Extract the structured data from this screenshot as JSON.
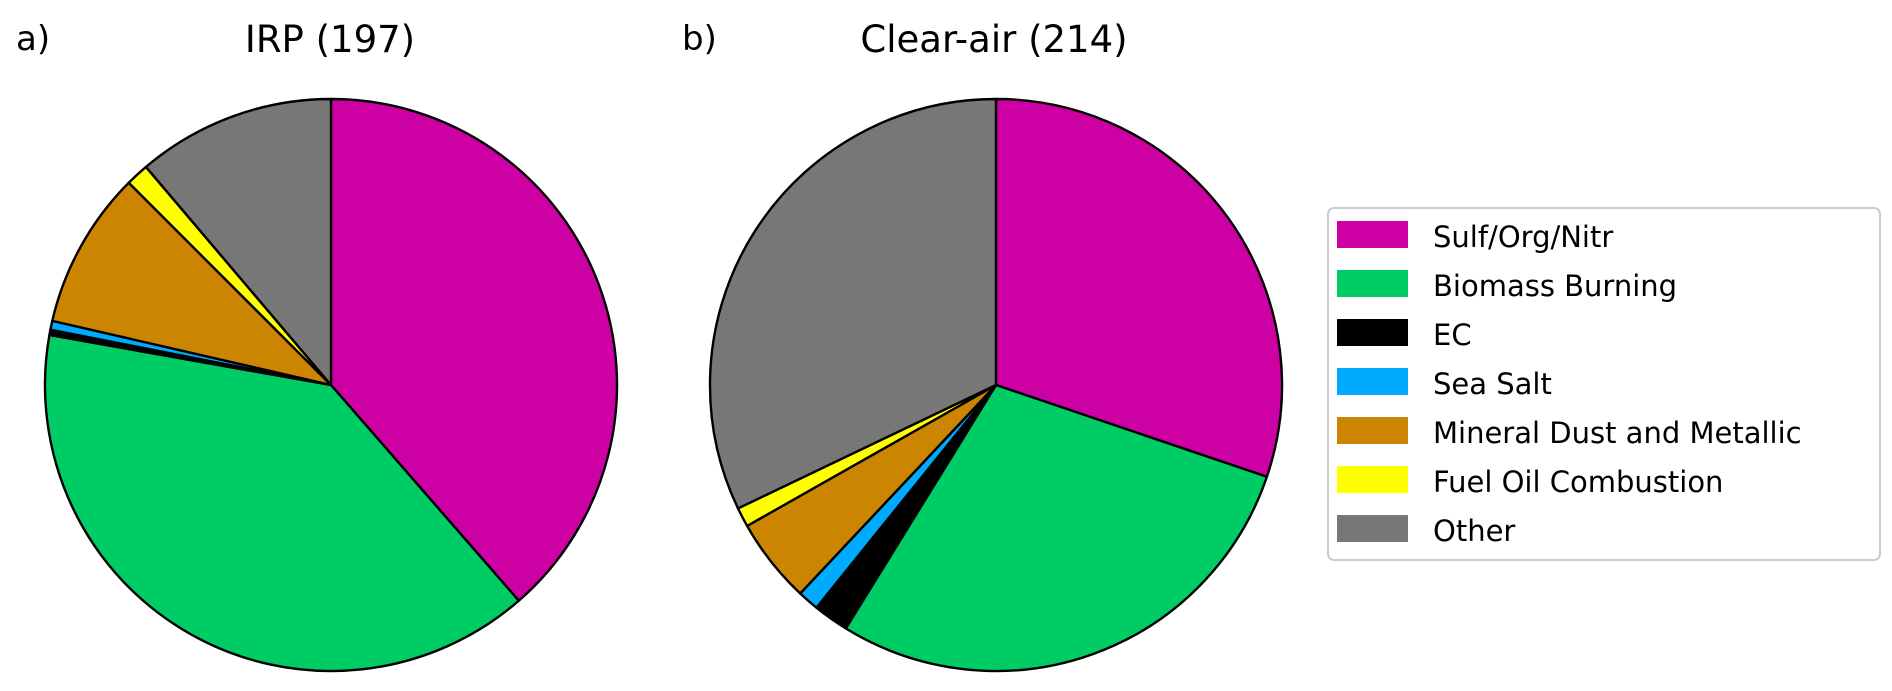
{
  "chart_data": [
    {
      "type": "pie",
      "panel_label": "a)",
      "title": "IRP (197)",
      "start": "12 o'clock, clockwise",
      "slices": [
        {
          "label": "Sulf/Org/Nitr",
          "value": 38.6
        },
        {
          "label": "Biomass Burning",
          "value": 39.2
        },
        {
          "label": "EC",
          "value": 0.3
        },
        {
          "label": "Sea Salt",
          "value": 0.5
        },
        {
          "label": "Mineral Dust and Metallic",
          "value": 8.9
        },
        {
          "label": "Fuel Oil Combustion",
          "value": 1.3
        },
        {
          "label": "Other",
          "value": 11.2
        }
      ]
    },
    {
      "type": "pie",
      "panel_label": "b)",
      "title": "Clear-air (214)",
      "start": "12 o'clock, clockwise",
      "slices": [
        {
          "label": "Sulf/Org/Nitr",
          "value": 30.2
        },
        {
          "label": "Biomass Burning",
          "value": 28.6
        },
        {
          "label": "EC",
          "value": 2.0
        },
        {
          "label": "Sea Salt",
          "value": 1.2
        },
        {
          "label": "Mineral Dust and Metallic",
          "value": 4.8
        },
        {
          "label": "Fuel Oil Combustion",
          "value": 1.1
        },
        {
          "label": "Other",
          "value": 32.1
        }
      ]
    }
  ],
  "legend": {
    "placement": "right",
    "items": [
      {
        "label": "Sulf/Org/Nitr",
        "color": "#cc00a3"
      },
      {
        "label": "Biomass Burning",
        "color": "#00cc66"
      },
      {
        "label": "EC",
        "color": "#000000"
      },
      {
        "label": "Sea Salt",
        "color": "#00aaff"
      },
      {
        "label": "Mineral Dust and Metallic",
        "color": "#cc8500"
      },
      {
        "label": "Fuel Oil Combustion",
        "color": "#ffff00"
      },
      {
        "label": "Other",
        "color": "#777777"
      }
    ]
  }
}
